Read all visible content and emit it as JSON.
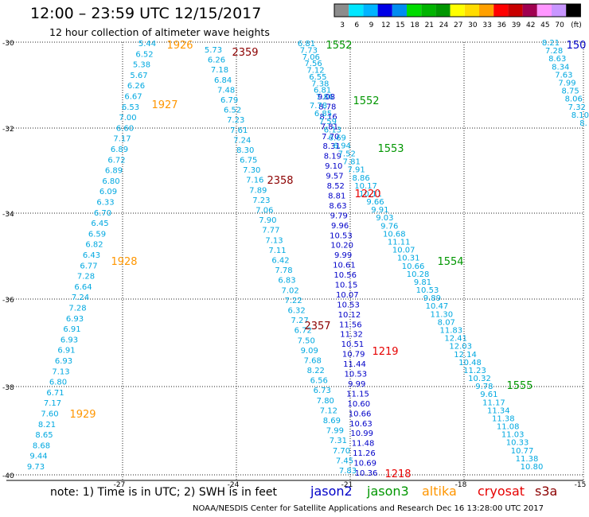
{
  "header": {
    "title": "12:00 – 23:59 UTC 12/15/2017",
    "subtitle": "12 hour collection of altimeter wave heights"
  },
  "colorbar": {
    "ticks": [
      "3",
      "6",
      "9",
      "12",
      "15",
      "18",
      "21",
      "24",
      "27",
      "30",
      "33",
      "36",
      "39",
      "42",
      "45",
      "70"
    ],
    "unit": "(ft)",
    "colors": [
      "#8c8c8c",
      "#00e6ff",
      "#00b4ff",
      "#0000e6",
      "#008cf0",
      "#00dc00",
      "#00b400",
      "#009600",
      "#ffff00",
      "#ffdc00",
      "#ffa000",
      "#ff0000",
      "#c80000",
      "#a00050",
      "#ff96ff",
      "#c896ff",
      "#000000"
    ]
  },
  "axes": {
    "y_labels": [
      "-30",
      "-32",
      "-34",
      "-36",
      "-38",
      "-40"
    ],
    "x_labels": [
      "-27",
      "-24",
      "-21",
      "-18",
      "-15"
    ]
  },
  "satellites": [
    {
      "name": "jason2",
      "color": "#0000c8"
    },
    {
      "name": "jason3",
      "color": "#009600"
    },
    {
      "name": "altika",
      "color": "#ff9600"
    },
    {
      "name": "cryosat",
      "color": "#e60000"
    },
    {
      "name": "s3a",
      "color": "#8c0000"
    }
  ],
  "note": "note:  1) Time is in UTC;  2) SWH is in feet",
  "footer": "NOAA/NESDIS Center for Satellite Applications and Research     Dec 16 13:28:00 UTC 2017",
  "tracks": [
    {
      "name": "track-altika-1926-1929",
      "color": "#00a8e0",
      "values": [
        "5.44",
        "6.52",
        "5.38",
        "5.67",
        "6.26",
        "6.67",
        "6.53",
        "7.00",
        "6.60",
        "7.17",
        "6.89",
        "6.72",
        "6.89",
        "6.80",
        "6.09",
        "6.33",
        "6.70",
        "6.45",
        "6.59",
        "6.82",
        "6.43",
        "6.77",
        "7.28",
        "6.64",
        "7.24",
        "7.28",
        "6.93",
        "6.91",
        "6.93",
        "6.91",
        "6.93",
        "7.13",
        "6.80",
        "6.71",
        "7.17",
        "7.60",
        "8.21",
        "8.65",
        "8.68",
        "9.44",
        "9.73"
      ]
    },
    {
      "name": "track-s3a-2357-2359",
      "color": "#00a8e0",
      "values": [
        "5.73",
        "6.26",
        "7.18",
        "6.84",
        "7.48",
        "6.79",
        "6.52",
        "7.23",
        "7.61",
        "7.24",
        "8.30",
        "6.75",
        "7.30",
        "7.16",
        "7.89",
        "7.23",
        "7.06",
        "7.90",
        "7.77",
        "7.13",
        "7.11",
        "6.42",
        "7.78",
        "6.83",
        "7.02",
        "7.22",
        "6.32",
        "7.27",
        "6.72",
        "7.50",
        "9.09",
        "7.68",
        "8.22",
        "6.56",
        "6.73",
        "7.80",
        "7.12",
        "8.69",
        "7.99",
        "7.31",
        "7.70",
        "7.45",
        "7.83"
      ]
    },
    {
      "name": "track-jason3-1552-a",
      "color": "#00a8e0",
      "values": [
        "6.81",
        "7.73",
        "7.06",
        "7.56",
        "7.12",
        "6.55",
        "7.38",
        "6.81",
        "7.86"
      ]
    },
    {
      "name": "track-jason2-1218-1219",
      "color": "#0000c8",
      "values": [
        "9.08",
        "8.78",
        "8.16",
        "7.81",
        "7.70",
        "8.31",
        "8.19",
        "9.10",
        "9.57",
        "8.52",
        "8.81",
        "8.63",
        "9.79",
        "9.96",
        "10.53",
        "10.20",
        "9.99",
        "10.61",
        "10.56",
        "10.15",
        "10.07",
        "10.53",
        "10.12",
        "11.56",
        "11.32",
        "10.51",
        "10.79",
        "11.44",
        "10.53",
        "9.99",
        "11.15",
        "10.60",
        "10.66",
        "10.63",
        "10.99",
        "11.48",
        "11.26",
        "10.69",
        "10.36"
      ]
    },
    {
      "name": "track-jason3-1553-1555",
      "color": "#00a8e0",
      "values": [
        "7.78",
        "6.85",
        "7.59",
        "6.13",
        "6.69",
        "6.94",
        "7.52",
        "7.81",
        "7.91",
        "8.86",
        "10.17",
        "10.11",
        "9.66",
        "9.91",
        "9.03",
        "9.76",
        "10.68",
        "11.11",
        "10.07",
        "10.31",
        "10.66",
        "10.28",
        "9.81",
        "10.53",
        "9.89",
        "10.47",
        "11.30",
        "8.07",
        "11.83",
        "12.41",
        "12.03",
        "12.14",
        "10.48",
        "11.23",
        "10.32",
        "9.78",
        "9.61",
        "11.17",
        "11.34",
        "11.38",
        "11.08",
        "11.03",
        "10.33",
        "10.77",
        "11.38",
        "10.80"
      ]
    },
    {
      "name": "track-jason2-1500",
      "color": "#00a8e0",
      "values": [
        "8.21",
        "7.28",
        "8.63",
        "8.34",
        "7.63",
        "7.99",
        "8.75",
        "8.06",
        "7.32",
        "8.10",
        "8."
      ]
    }
  ],
  "time_labels": [
    {
      "text": "1926",
      "color": "#ff9600"
    },
    {
      "text": "1927",
      "color": "#ff9600"
    },
    {
      "text": "1928",
      "color": "#ff9600"
    },
    {
      "text": "1929",
      "color": "#ff9600"
    },
    {
      "text": "2359",
      "color": "#8c0000"
    },
    {
      "text": "2358",
      "color": "#8c0000"
    },
    {
      "text": "2357",
      "color": "#8c0000"
    },
    {
      "text": "1552",
      "color": "#009600"
    },
    {
      "text": "1552",
      "color": "#009600"
    },
    {
      "text": "1553",
      "color": "#009600"
    },
    {
      "text": "1554",
      "color": "#009600"
    },
    {
      "text": "1555",
      "color": "#009600"
    },
    {
      "text": "1220",
      "color": "#e60000"
    },
    {
      "text": "1219",
      "color": "#e60000"
    },
    {
      "text": "1218",
      "color": "#e60000"
    },
    {
      "text": "150",
      "color": "#0000c8"
    }
  ]
}
